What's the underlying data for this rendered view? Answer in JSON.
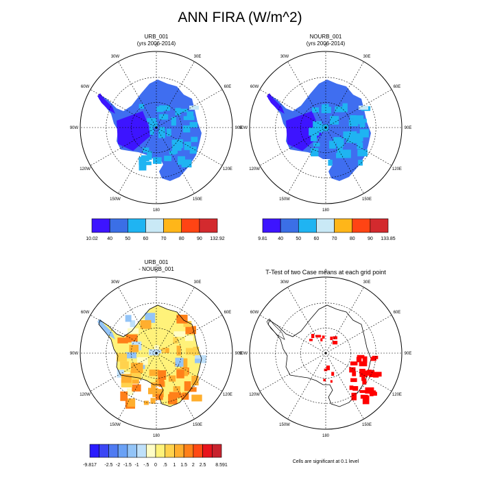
{
  "page": {
    "title": "ANN FIRA (W/m^2)"
  },
  "chart_data": [
    {
      "type": "heatmap",
      "title": "URB_001",
      "subtitle": "(yrs 2006-2014)",
      "projection": "south polar stereographic",
      "lon_labels": [
        "0",
        "30E",
        "60E",
        "90E",
        "120E",
        "150E",
        "180",
        "150W",
        "120W",
        "90W",
        "60W",
        "30W"
      ],
      "colorbar": {
        "colors": [
          "#3d14ff",
          "#3b6fe6",
          "#1fb4f2",
          "#c9e9f6",
          "#ffb619",
          "#ff4414",
          "#d32a2e"
        ],
        "labels": [
          "10.02",
          "40",
          "50",
          "60",
          "70",
          "80",
          "90",
          "132.92"
        ]
      }
    },
    {
      "type": "heatmap",
      "title": "NOURB_001",
      "subtitle": "(yrs 2006-2014)",
      "projection": "south polar stereographic",
      "lon_labels": [
        "0",
        "30E",
        "60E",
        "90E",
        "120E",
        "150E",
        "180",
        "150W",
        "120W",
        "90W",
        "60W",
        "30W"
      ],
      "colorbar": {
        "colors": [
          "#3d14ff",
          "#3b6fe6",
          "#1fb4f2",
          "#c9e9f6",
          "#ffb619",
          "#ff4414",
          "#d32a2e"
        ],
        "labels": [
          "9.81",
          "40",
          "50",
          "60",
          "70",
          "80",
          "90",
          "133.85"
        ]
      }
    },
    {
      "type": "heatmap",
      "title": "URB_001",
      "subtitle": "- NOURB_001",
      "projection": "south polar stereographic",
      "lon_labels": [
        "0",
        "30E",
        "60E",
        "90E",
        "120E",
        "150E",
        "180",
        "150W",
        "120W",
        "90W",
        "60W",
        "30W"
      ],
      "colorbar": {
        "colors": [
          "#2a1cff",
          "#3b47f5",
          "#4f7bf2",
          "#6aa1f5",
          "#93c4f7",
          "#bfe0fa",
          "#fffdc6",
          "#fff27a",
          "#ffd24d",
          "#ffae2e",
          "#ff8019",
          "#ff4a14",
          "#e8141c",
          "#c8232e"
        ],
        "labels": [
          "-9.817",
          "-2.5",
          "-2",
          "-1.5",
          "-1",
          "-.5",
          "0",
          ".5",
          "1",
          "1.5",
          "2",
          "2.5",
          "8.591"
        ]
      }
    },
    {
      "type": "heatmap",
      "title": "T-Test of two Case means at each grid point",
      "projection": "south polar stereographic",
      "lon_labels": [
        "0",
        "30E",
        "60E",
        "90E",
        "120E",
        "150E",
        "180",
        "150W",
        "120W",
        "90W",
        "60W",
        "30W"
      ],
      "significance_color": "#ff0000",
      "footnote": "Cells are significant at 0.1 level"
    }
  ]
}
